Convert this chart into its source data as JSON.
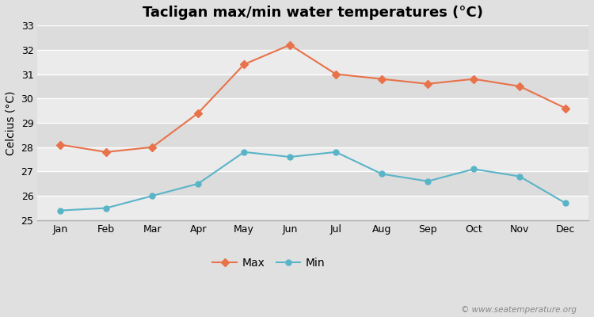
{
  "months": [
    "Jan",
    "Feb",
    "Mar",
    "Apr",
    "May",
    "Jun",
    "Jul",
    "Aug",
    "Sep",
    "Oct",
    "Nov",
    "Dec"
  ],
  "max_temps": [
    28.1,
    27.8,
    28.0,
    29.4,
    31.4,
    32.2,
    31.0,
    30.8,
    30.6,
    30.8,
    30.5,
    29.6
  ],
  "min_temps": [
    25.4,
    25.5,
    26.0,
    26.5,
    27.8,
    27.6,
    27.8,
    26.9,
    26.6,
    27.1,
    26.8,
    25.7
  ],
  "max_color": "#e8724a",
  "min_color": "#5ab4c8",
  "title": "Tacligan max/min water temperatures (°C)",
  "ylabel": "Celcius (°C)",
  "ylim": [
    25,
    33
  ],
  "yticks": [
    25,
    26,
    27,
    28,
    29,
    30,
    31,
    32,
    33
  ],
  "outer_bg": "#e0e0e0",
  "plot_bg_dark": "#dcdcdc",
  "plot_bg_light": "#ebebeb",
  "grid_color": "#ffffff",
  "watermark": "© www.seatemperature.org",
  "title_fontsize": 13,
  "label_fontsize": 10,
  "tick_fontsize": 9,
  "legend_fontsize": 10
}
